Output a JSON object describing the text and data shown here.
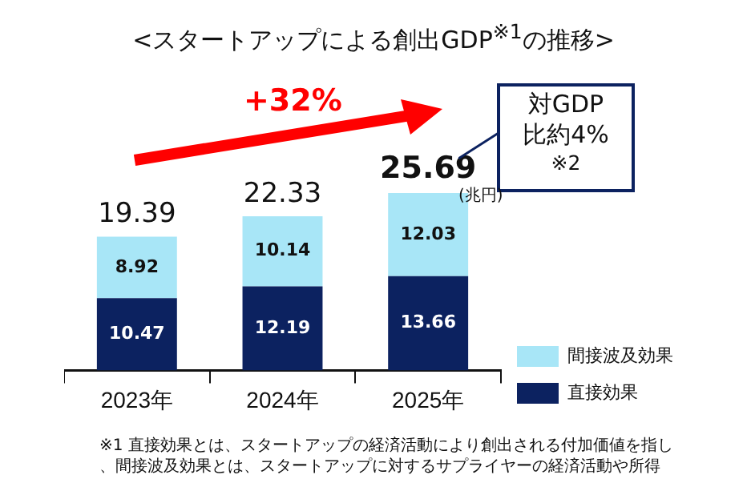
{
  "chart_data": {
    "type": "bar",
    "title": "<スタートアップによる創出GDP$^{※1}$の推移>",
    "categories": [
      "2023年",
      "2024年",
      "2025年"
    ],
    "series": [
      {
        "name": "直接効果",
        "color": "#0c2260",
        "values": [
          10.47,
          12.19,
          13.66
        ]
      },
      {
        "name": "間接波及効果",
        "color": "#a8e6f7",
        "values": [
          8.92,
          10.14,
          12.03
        ]
      }
    ],
    "stacked": true,
    "data_labels": true,
    "totals": [
      "19.39",
      "22.33",
      "25.69"
    ],
    "tick_labels": "x",
    "legend": "right",
    "annotations": [
      "+32%",
      "対GDP比約4%$^{※2}$",
      "(兆円)",
      "※1 直接効果とは、スタートアップの経済活動により創出される付加価値を指し、間接波及効果とは、スタートアップに対するサプライヤーの経済活動や所得"
    ]
  }
}
